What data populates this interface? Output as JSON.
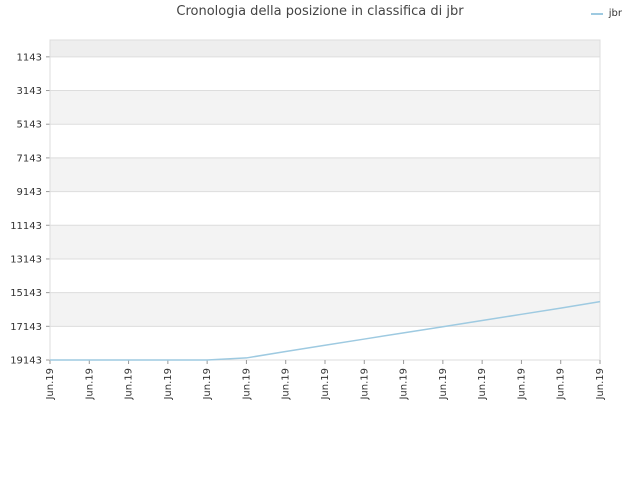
{
  "chart_data": {
    "type": "line",
    "title": "Cronologia della posizione in classifica di jbr",
    "xlabel": "",
    "ylabel": "",
    "y_reversed": true,
    "ylim": [
      19143,
      143
    ],
    "y_ticks": [
      1143,
      3143,
      5143,
      7143,
      9143,
      11143,
      13143,
      15143,
      17143,
      19143
    ],
    "x_ticks": [
      "Jun.19",
      "Jun.19",
      "Jun.19",
      "Jun.19",
      "Jun.19",
      "Jun.19",
      "Jun.19",
      "Jun.19",
      "Jun.19",
      "Jun.19",
      "Jun.19",
      "Jun.19",
      "Jun.19",
      "Jun.19",
      "Jun.19"
    ],
    "x": [
      0,
      1,
      2,
      3,
      4,
      5,
      6,
      7,
      8,
      9,
      10,
      11,
      12,
      13,
      14
    ],
    "series": [
      {
        "name": "jbr",
        "color": "#9ecae1",
        "values": [
          19143,
          19143,
          19143,
          19143,
          19143,
          19020,
          18640,
          18270,
          17900,
          17530,
          17170,
          16800,
          16430,
          16060,
          15680
        ]
      }
    ],
    "grid": true,
    "legend_position": "top-right",
    "band_colors": [
      "#eeeeee",
      "#ffffff",
      "#f3f3f3"
    ]
  }
}
